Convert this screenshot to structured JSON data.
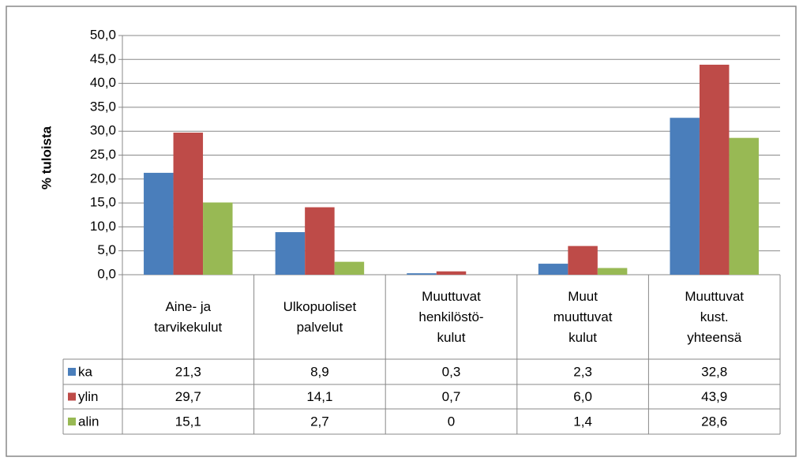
{
  "chart_data": {
    "type": "bar",
    "y_label": "% tuloista",
    "categories": [
      "Aine- ja\ntarvikekulut",
      "Ulkopuoliset\npalvelut",
      "Muuttuvat\nhenkilöstö-\nkulut",
      "Muut\nmuuttuvat\nkulut",
      "Muuttuvat\nkust.\nyhteensä"
    ],
    "series": [
      {
        "name": "ka",
        "color": "#4a7ebb",
        "values": [
          21.3,
          8.9,
          0.3,
          2.3,
          32.8
        ],
        "value_labels": [
          "21,3",
          "8,9",
          "0,3",
          "2,3",
          "32,8"
        ]
      },
      {
        "name": "ylin",
        "color": "#be4b48",
        "values": [
          29.7,
          14.1,
          0.7,
          6.0,
          43.9
        ],
        "value_labels": [
          "29,7",
          "14,1",
          "0,7",
          "6,0",
          "43,9"
        ]
      },
      {
        "name": "alin",
        "color": "#98b954",
        "values": [
          15.1,
          2.7,
          0,
          1.4,
          28.6
        ],
        "value_labels": [
          "15,1",
          "2,7",
          "0",
          "1,4",
          "28,6"
        ]
      }
    ],
    "ylim": [
      0,
      50
    ],
    "yticks": [
      {
        "value": 0,
        "label": "0,0"
      },
      {
        "value": 5,
        "label": "5,0"
      },
      {
        "value": 10,
        "label": "10,0"
      },
      {
        "value": 15,
        "label": "15,0"
      },
      {
        "value": 20,
        "label": "20,0"
      },
      {
        "value": 25,
        "label": "25,0"
      },
      {
        "value": 30,
        "label": "30,0"
      },
      {
        "value": 35,
        "label": "35,0"
      },
      {
        "value": 40,
        "label": "40,0"
      },
      {
        "value": 45,
        "label": "45,0"
      },
      {
        "value": 50,
        "label": "50,0"
      }
    ],
    "grid": true
  }
}
